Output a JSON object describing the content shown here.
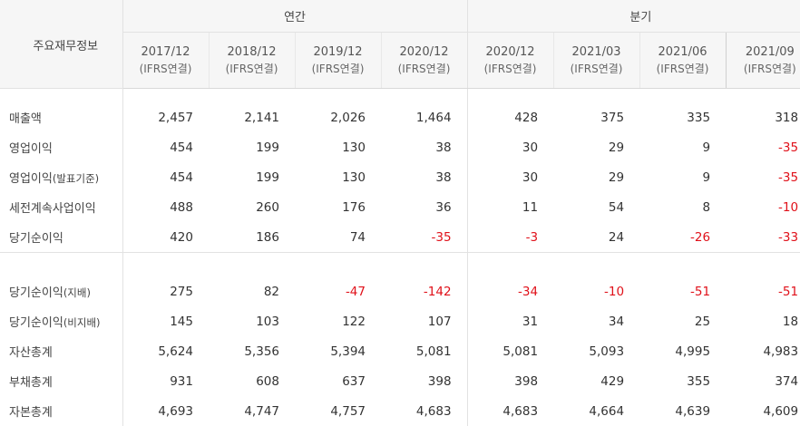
{
  "table_title": "주요재무정보",
  "groups": {
    "annual": "연간",
    "quarterly": "분기"
  },
  "periods": [
    {
      "label": "2017/12",
      "basis": "(IFRS연결)"
    },
    {
      "label": "2018/12",
      "basis": "(IFRS연결)"
    },
    {
      "label": "2019/12",
      "basis": "(IFRS연결)"
    },
    {
      "label": "2020/12",
      "basis": "(IFRS연결)"
    },
    {
      "label": "2020/12",
      "basis": "(IFRS연결)"
    },
    {
      "label": "2021/03",
      "basis": "(IFRS연결)"
    },
    {
      "label": "2021/06",
      "basis": "(IFRS연결)"
    },
    {
      "label": "2021/09",
      "basis": "(IFRS연결)"
    }
  ],
  "section1": [
    {
      "label": "매출액",
      "suffix": "",
      "values": [
        "2,457",
        "2,141",
        "2,026",
        "1,464",
        "428",
        "375",
        "335",
        "318"
      ]
    },
    {
      "label": "영업이익",
      "suffix": "",
      "values": [
        "454",
        "199",
        "130",
        "38",
        "30",
        "29",
        "9",
        "-35"
      ]
    },
    {
      "label": "영업이익",
      "suffix": "(발표기준)",
      "values": [
        "454",
        "199",
        "130",
        "38",
        "30",
        "29",
        "9",
        "-35"
      ]
    },
    {
      "label": "세전계속사업이익",
      "suffix": "",
      "values": [
        "488",
        "260",
        "176",
        "36",
        "11",
        "54",
        "8",
        "-10"
      ]
    },
    {
      "label": "당기순이익",
      "suffix": "",
      "values": [
        "420",
        "186",
        "74",
        "-35",
        "-3",
        "24",
        "-26",
        "-33"
      ]
    }
  ],
  "section2": [
    {
      "label": "당기순이익",
      "suffix": "(지배)",
      "values": [
        "275",
        "82",
        "-47",
        "-142",
        "-34",
        "-10",
        "-51",
        "-51"
      ]
    },
    {
      "label": "당기순이익",
      "suffix": "(비지배)",
      "values": [
        "145",
        "103",
        "122",
        "107",
        "31",
        "34",
        "25",
        "18"
      ]
    },
    {
      "label": "자산총계",
      "suffix": "",
      "values": [
        "5,624",
        "5,356",
        "5,394",
        "5,081",
        "5,081",
        "5,093",
        "4,995",
        "4,983"
      ]
    },
    {
      "label": "부채총계",
      "suffix": "",
      "values": [
        "931",
        "608",
        "637",
        "398",
        "398",
        "429",
        "355",
        "374"
      ]
    },
    {
      "label": "자본총계",
      "suffix": "",
      "values": [
        "4,693",
        "4,747",
        "4,757",
        "4,683",
        "4,683",
        "4,664",
        "4,639",
        "4,609"
      ]
    }
  ],
  "colors": {
    "negative": "#e0111a",
    "header_bg": "#f6f6f6",
    "border": "#e2e2e2"
  }
}
